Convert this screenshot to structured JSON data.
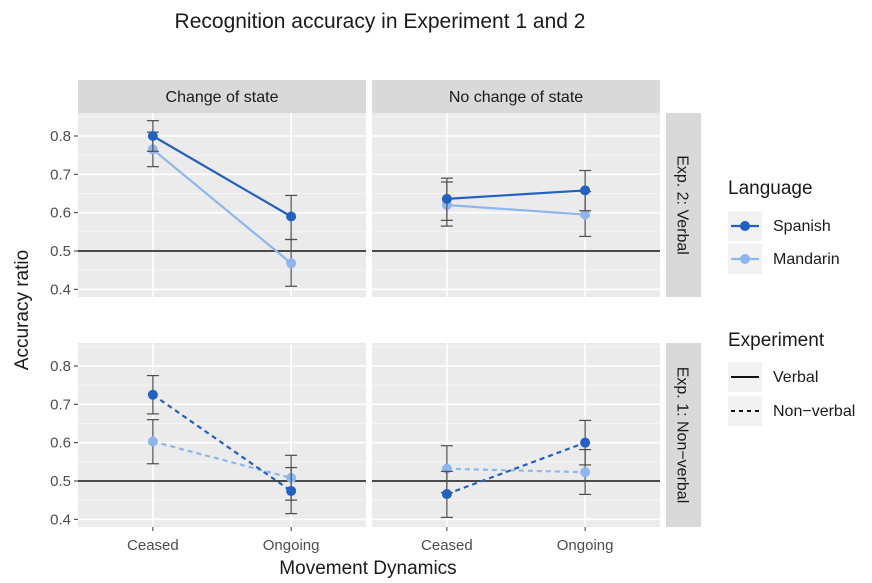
{
  "chart_data": {
    "type": "line",
    "title": "Recognition accuracy in Experiment 1 and 2",
    "xlabel": "Movement Dynamics",
    "ylabel": "Accuracy ratio",
    "categories": [
      "Ceased",
      "Ongoing"
    ],
    "ylim": [
      0.38,
      0.86
    ],
    "yticks": [
      0.4,
      0.5,
      0.6,
      0.7,
      0.8
    ],
    "ytick_labels": [
      "0.4",
      "0.5",
      "0.6",
      "0.7",
      "0.8"
    ],
    "reference_line": 0.5,
    "grid": true,
    "legend_position": "right",
    "columns": [
      "Change of state",
      "No change of state"
    ],
    "rows": [
      "Exp. 2: Verbal",
      "Exp. 1: Non−verbal"
    ],
    "legend": {
      "language_title": "Language",
      "languages": [
        {
          "name": "Spanish",
          "color": "#2260c4"
        },
        {
          "name": "Mandarin",
          "color": "#8cb6ee"
        }
      ],
      "experiment_title": "Experiment",
      "experiments": [
        {
          "name": "Verbal",
          "style": "solid"
        },
        {
          "name": "Non−verbal",
          "style": "dashed"
        }
      ]
    },
    "panels": [
      {
        "column": "Change of state",
        "row": "Exp. 2: Verbal",
        "experiment": "Verbal",
        "series": [
          {
            "language": "Spanish",
            "values": [
              0.8,
              0.59
            ],
            "err_low": [
              0.76,
              0.53
            ],
            "err_high": [
              0.84,
              0.645
            ]
          },
          {
            "language": "Mandarin",
            "values": [
              0.765,
              0.468
            ],
            "err_low": [
              0.72,
              0.408
            ],
            "err_high": [
              0.81,
              0.53
            ]
          }
        ]
      },
      {
        "column": "No change of state",
        "row": "Exp. 2: Verbal",
        "experiment": "Verbal",
        "series": [
          {
            "language": "Spanish",
            "values": [
              0.636,
              0.658
            ],
            "err_low": [
              0.58,
              0.605
            ],
            "err_high": [
              0.69,
              0.71
            ]
          },
          {
            "language": "Mandarin",
            "values": [
              0.62,
              0.595
            ],
            "err_low": [
              0.565,
              0.538
            ],
            "err_high": [
              0.68,
              0.655
            ]
          }
        ]
      },
      {
        "column": "Change of state",
        "row": "Exp. 1: Non−verbal",
        "experiment": "Non−verbal",
        "series": [
          {
            "language": "Spanish",
            "values": [
              0.725,
              0.474
            ],
            "err_low": [
              0.675,
              0.415
            ],
            "err_high": [
              0.775,
              0.535
            ]
          },
          {
            "language": "Mandarin",
            "values": [
              0.603,
              0.508
            ],
            "err_low": [
              0.545,
              0.45
            ],
            "err_high": [
              0.66,
              0.567
            ]
          }
        ]
      },
      {
        "column": "No change of state",
        "row": "Exp. 1: Non−verbal",
        "experiment": "Non−verbal",
        "series": [
          {
            "language": "Spanish",
            "values": [
              0.466,
              0.6
            ],
            "err_low": [
              0.405,
              0.542
            ],
            "err_high": [
              0.525,
              0.658
            ]
          },
          {
            "language": "Mandarin",
            "values": [
              0.532,
              0.523
            ],
            "err_low": [
              0.47,
              0.465
            ],
            "err_high": [
              0.592,
              0.582
            ]
          }
        ]
      }
    ]
  }
}
